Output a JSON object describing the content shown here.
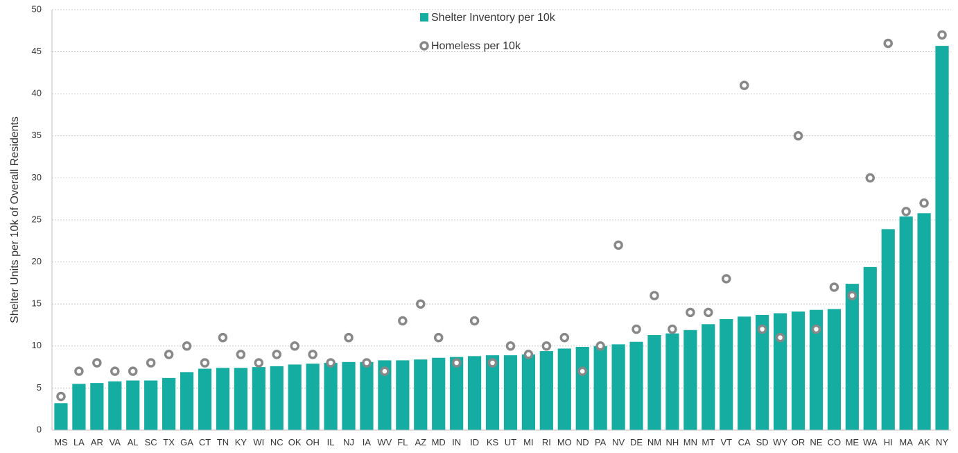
{
  "chart_data": {
    "type": "bar",
    "title": "",
    "xlabel": "",
    "ylabel": "Shelter Units per 10k of Overall Residents",
    "ylim": [
      0,
      50
    ],
    "yticks": [
      0,
      5,
      10,
      15,
      20,
      25,
      30,
      35,
      40,
      45,
      50
    ],
    "grid": "horizontal dotted",
    "legend_position": "top-center",
    "categories": [
      "MS",
      "LA",
      "AR",
      "VA",
      "AL",
      "SC",
      "TX",
      "GA",
      "CT",
      "TN",
      "KY",
      "WI",
      "NC",
      "OK",
      "OH",
      "IL",
      "NJ",
      "IA",
      "WV",
      "FL",
      "AZ",
      "MD",
      "IN",
      "ID",
      "KS",
      "UT",
      "MI",
      "RI",
      "MO",
      "ND",
      "PA",
      "NV",
      "DE",
      "NM",
      "NH",
      "MN",
      "MT",
      "VT",
      "CA",
      "SD",
      "WY",
      "OR",
      "NE",
      "CO",
      "ME",
      "WA",
      "HI",
      "MA",
      "AK",
      "NY"
    ],
    "series": [
      {
        "name": "Shelter Inventory per 10k",
        "kind": "bar",
        "color": "#15ada1",
        "values": [
          3.2,
          5.5,
          5.6,
          5.8,
          5.9,
          5.9,
          6.2,
          6.9,
          7.3,
          7.4,
          7.4,
          7.5,
          7.6,
          7.8,
          7.9,
          8.0,
          8.1,
          8.1,
          8.3,
          8.3,
          8.4,
          8.6,
          8.7,
          8.8,
          8.9,
          8.9,
          9.0,
          9.4,
          9.7,
          9.9,
          10.0,
          10.2,
          10.5,
          11.3,
          11.5,
          11.9,
          12.6,
          13.2,
          13.5,
          13.7,
          13.9,
          14.1,
          14.3,
          14.4,
          17.4,
          19.4,
          23.9,
          25.4,
          25.8,
          45.7
        ]
      },
      {
        "name": "Homeless per 10k",
        "kind": "marker",
        "color": "#888888",
        "values": [
          4,
          7,
          8,
          7,
          7,
          8,
          9,
          10,
          8,
          11,
          9,
          8,
          9,
          10,
          9,
          8,
          11,
          8,
          7,
          13,
          15,
          11,
          8,
          13,
          8,
          10,
          9,
          10,
          11,
          7,
          10,
          22,
          12,
          16,
          12,
          14,
          14,
          18,
          41,
          12,
          11,
          35,
          12,
          17,
          16,
          30,
          46,
          26,
          27,
          47
        ]
      }
    ]
  }
}
